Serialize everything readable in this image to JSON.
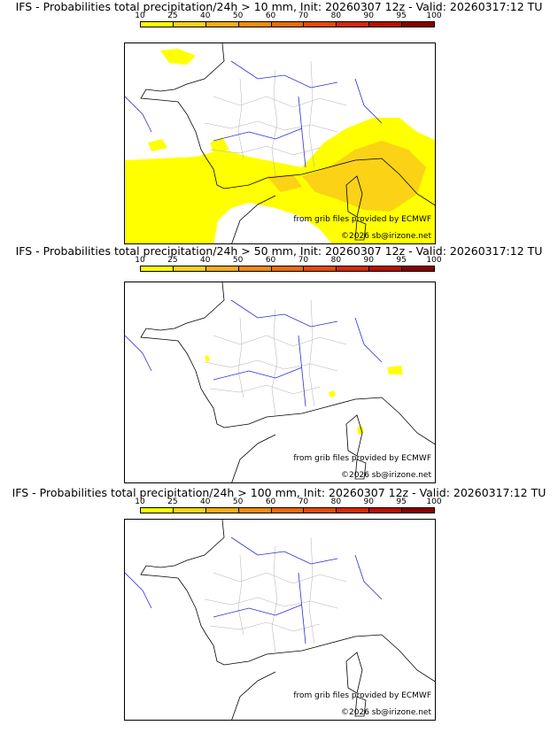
{
  "colorbar": {
    "ticks": [
      "10",
      "25",
      "40",
      "50",
      "60",
      "70",
      "80",
      "90",
      "95",
      "100"
    ],
    "colors": [
      "#ffff00",
      "#fbd216",
      "#f6ad14",
      "#f28a10",
      "#ec6a0c",
      "#e44a07",
      "#d42a05",
      "#b81000",
      "#8a0000"
    ]
  },
  "panels": [
    {
      "title": "IFS - Probabilities total precipitation/24h > 10 mm, Init: 20260307 12z - Valid: 20260317:12 TU"
    },
    {
      "title": "IFS - Probabilities total precipitation/24h > 50 mm, Init: 20260307 12z - Valid: 20260317:12 TU"
    },
    {
      "title": "IFS - Probabilities total precipitation/24h > 100 mm, Init: 20260307 12z - Valid: 20260317:12 TU"
    }
  ],
  "credits": {
    "source": "from grib files provided by ECMWF",
    "copyright": "©2026 sb@irizone.net"
  },
  "colors": {
    "coastline": "#000000",
    "rivers": "#2b2bd6",
    "departments": "#b0b0b0"
  }
}
